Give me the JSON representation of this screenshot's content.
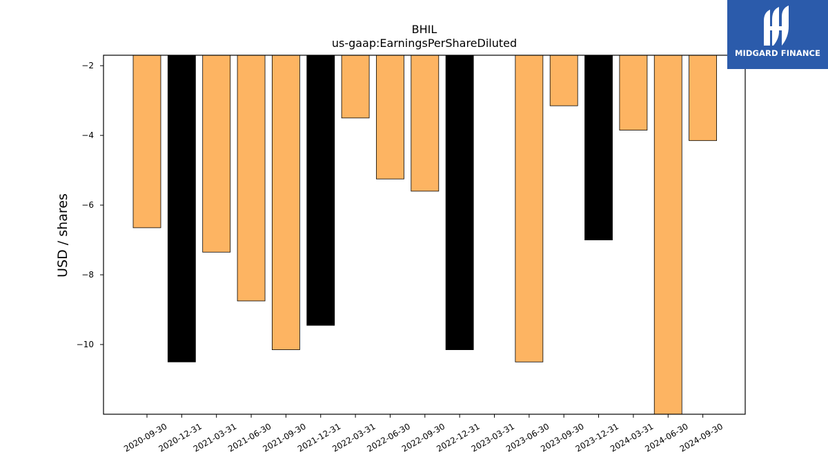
{
  "brand": {
    "name": "MIDGARD FINANCE",
    "bg_color": "#2b5bab"
  },
  "chart_data": {
    "type": "bar",
    "title": "BHIL",
    "subtitle": "us-gaap:EarningsPerShareDiluted",
    "ylabel": "USD / shares",
    "xlabel": "",
    "categories": [
      "2020-09-30",
      "2020-12-31",
      "2021-03-31",
      "2021-06-30",
      "2021-09-30",
      "2021-12-31",
      "2022-03-31",
      "2022-06-30",
      "2022-09-30",
      "2022-12-31",
      "2023-03-31",
      "2023-06-30",
      "2023-09-30",
      "2023-12-31",
      "2024-03-31",
      "2024-06-30",
      "2024-09-30"
    ],
    "values": [
      -6.65,
      -10.5,
      -7.35,
      -8.75,
      -10.15,
      -9.45,
      -3.5,
      -5.25,
      -5.6,
      -10.15,
      null,
      -10.5,
      -3.15,
      -7.0,
      -3.85,
      -12.0,
      -4.15
    ],
    "bar_colors": [
      "#fdb462",
      "#000000",
      "#fdb462",
      "#fdb462",
      "#fdb462",
      "#000000",
      "#fdb462",
      "#fdb462",
      "#fdb462",
      "#000000",
      "#fdb462",
      "#fdb462",
      "#fdb462",
      "#000000",
      "#fdb462",
      "#fdb462",
      "#fdb462"
    ],
    "baseline": -1.7,
    "ylim": [
      -12.0,
      -1.7
    ],
    "yticks": [
      -2,
      -4,
      -6,
      -8,
      -10
    ],
    "ytick_labels": [
      "−2",
      "−4",
      "−6",
      "−8",
      "−10"
    ],
    "grid": false,
    "legend": "none"
  }
}
